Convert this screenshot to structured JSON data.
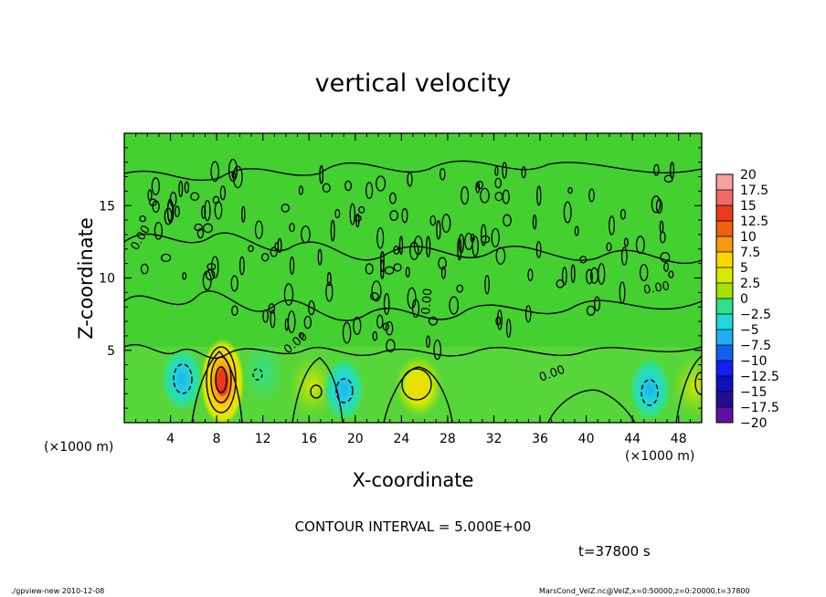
{
  "chart_data": {
    "type": "heatmap",
    "title": "vertical velocity",
    "xlabel": "X-coordinate",
    "ylabel": "Z-coordinate",
    "x_unit_label_left": "(×1000 m)",
    "x_unit_label_right": "(×1000 m)",
    "x_ticks": [
      "4",
      "8",
      "12",
      "16",
      "20",
      "24",
      "28",
      "32",
      "36",
      "40",
      "44",
      "48"
    ],
    "y_ticks": [
      "5",
      "10",
      "15"
    ],
    "xlim": [
      0,
      50
    ],
    "ylim": [
      0,
      20
    ],
    "contour_label": "0.00",
    "colorbar": {
      "labels": [
        "20",
        "17.5",
        "15",
        "12.5",
        "10",
        "7.5",
        "5",
        "2.5",
        "0",
        "−2.5",
        "−5",
        "−7.5",
        "−10",
        "−12.5",
        "−15",
        "−17.5",
        "−20"
      ],
      "colors": [
        "#f8a0a0",
        "#f06a6a",
        "#ea3a1a",
        "#f06010",
        "#f89a10",
        "#f8d800",
        "#d8e800",
        "#a8e000",
        "#20c020",
        "#30e088",
        "#20d8d8",
        "#20b0f0",
        "#1060f0",
        "#1020f0",
        "#1010c0",
        "#201090",
        "#6010a0"
      ]
    },
    "features": [
      {
        "x": 8.5,
        "z": 2.8,
        "value": 17.5,
        "kind": "updraft"
      },
      {
        "x": 16.3,
        "z": 2.5,
        "value": 5,
        "kind": "updraft"
      },
      {
        "x": 25.5,
        "z": 2.5,
        "value": 7.5,
        "kind": "updraft"
      },
      {
        "x": 49.5,
        "z": 2.5,
        "value": 5,
        "kind": "updraft"
      },
      {
        "x": 5.0,
        "z": 3.0,
        "value": -7.5,
        "kind": "downdraft"
      },
      {
        "x": 19.0,
        "z": 2.3,
        "value": -7.5,
        "kind": "downdraft"
      },
      {
        "x": 45.5,
        "z": 2.3,
        "value": -7.5,
        "kind": "downdraft"
      },
      {
        "x": 12.0,
        "z": 3.5,
        "value": -5,
        "kind": "downdraft"
      }
    ],
    "grid": false,
    "legend": "right"
  },
  "text": {
    "contour_interval": "CONTOUR INTERVAL = 5.000E+00",
    "time": "t=37800 s",
    "footer_left": "./gpview-new  2010-12-08",
    "footer_right": "MarsCond_VelZ.nc@VelZ,x=0:50000,z=0:20000,t=37800"
  }
}
